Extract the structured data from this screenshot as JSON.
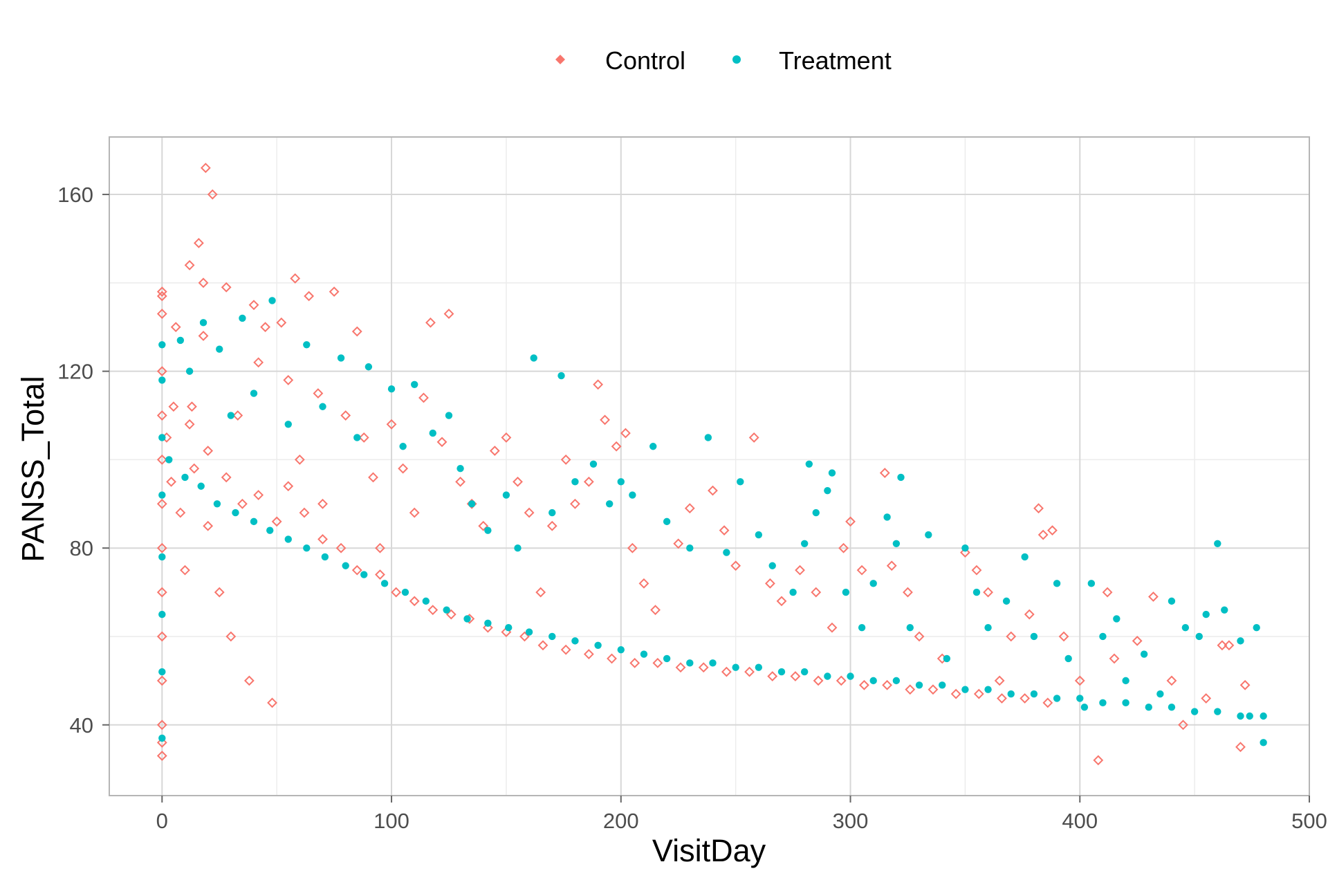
{
  "chart_data": {
    "type": "scatter",
    "title": "",
    "xlabel": "VisitDay",
    "ylabel": "PANSS_Total",
    "xlim": [
      -23,
      500
    ],
    "ylim": [
      24,
      173
    ],
    "xticks": [
      0,
      100,
      200,
      300,
      400,
      500
    ],
    "yticks": [
      40,
      80,
      120,
      160
    ],
    "xtick_labels": [
      "0",
      "100",
      "200",
      "300",
      "400",
      "500"
    ],
    "ytick_labels": [
      "40",
      "80",
      "120",
      "160"
    ],
    "grid": true,
    "legend_position": "top-center",
    "series": [
      {
        "name": "Control",
        "color": "#F8766D",
        "marker": "open-diamond",
        "points": [
          [
            0,
            138
          ],
          [
            0,
            137
          ],
          [
            0,
            133
          ],
          [
            0,
            120
          ],
          [
            0,
            110
          ],
          [
            0,
            100
          ],
          [
            0,
            90
          ],
          [
            0,
            80
          ],
          [
            0,
            70
          ],
          [
            0,
            60
          ],
          [
            0,
            50
          ],
          [
            0,
            40
          ],
          [
            0,
            36
          ],
          [
            0,
            33
          ],
          [
            2,
            105
          ],
          [
            4,
            95
          ],
          [
            6,
            130
          ],
          [
            8,
            88
          ],
          [
            10,
            75
          ],
          [
            12,
            144
          ],
          [
            13,
            112
          ],
          [
            14,
            98
          ],
          [
            16,
            149
          ],
          [
            18,
            140
          ],
          [
            18,
            128
          ],
          [
            19,
            166
          ],
          [
            22,
            160
          ],
          [
            20,
            85
          ],
          [
            25,
            70
          ],
          [
            28,
            139
          ],
          [
            30,
            60
          ],
          [
            33,
            110
          ],
          [
            38,
            50
          ],
          [
            40,
            135
          ],
          [
            42,
            122
          ],
          [
            45,
            130
          ],
          [
            48,
            45
          ],
          [
            52,
            131
          ],
          [
            55,
            118
          ],
          [
            58,
            141
          ],
          [
            60,
            100
          ],
          [
            64,
            137
          ],
          [
            68,
            115
          ],
          [
            70,
            90
          ],
          [
            75,
            138
          ],
          [
            80,
            110
          ],
          [
            85,
            129
          ],
          [
            88,
            105
          ],
          [
            92,
            96
          ],
          [
            95,
            80
          ],
          [
            100,
            108
          ],
          [
            105,
            98
          ],
          [
            110,
            88
          ],
          [
            114,
            114
          ],
          [
            117,
            131
          ],
          [
            122,
            104
          ],
          [
            125,
            133
          ],
          [
            130,
            95
          ],
          [
            135,
            90
          ],
          [
            140,
            85
          ],
          [
            145,
            102
          ],
          [
            150,
            105
          ],
          [
            155,
            95
          ],
          [
            160,
            88
          ],
          [
            165,
            70
          ],
          [
            170,
            85
          ],
          [
            176,
            100
          ],
          [
            180,
            90
          ],
          [
            186,
            95
          ],
          [
            190,
            117
          ],
          [
            193,
            109
          ],
          [
            198,
            103
          ],
          [
            202,
            106
          ],
          [
            205,
            80
          ],
          [
            210,
            72
          ],
          [
            215,
            66
          ],
          [
            225,
            81
          ],
          [
            230,
            89
          ],
          [
            240,
            93
          ],
          [
            245,
            84
          ],
          [
            250,
            76
          ],
          [
            258,
            105
          ],
          [
            265,
            72
          ],
          [
            270,
            68
          ],
          [
            278,
            75
          ],
          [
            285,
            70
          ],
          [
            292,
            62
          ],
          [
            297,
            80
          ],
          [
            300,
            86
          ],
          [
            305,
            75
          ],
          [
            315,
            97
          ],
          [
            318,
            76
          ],
          [
            325,
            70
          ],
          [
            330,
            60
          ],
          [
            340,
            55
          ],
          [
            350,
            79
          ],
          [
            355,
            75
          ],
          [
            360,
            70
          ],
          [
            365,
            50
          ],
          [
            370,
            60
          ],
          [
            378,
            65
          ],
          [
            382,
            89
          ],
          [
            384,
            83
          ],
          [
            388,
            84
          ],
          [
            393,
            60
          ],
          [
            400,
            50
          ],
          [
            408,
            32
          ],
          [
            412,
            70
          ],
          [
            415,
            55
          ],
          [
            425,
            59
          ],
          [
            432,
            69
          ],
          [
            440,
            50
          ],
          [
            445,
            40
          ],
          [
            455,
            46
          ],
          [
            462,
            58
          ],
          [
            465,
            58
          ],
          [
            470,
            35
          ],
          [
            472,
            49
          ],
          [
            5,
            112
          ],
          [
            12,
            108
          ],
          [
            20,
            102
          ],
          [
            28,
            96
          ],
          [
            35,
            90
          ],
          [
            42,
            92
          ],
          [
            50,
            86
          ],
          [
            55,
            94
          ],
          [
            62,
            88
          ],
          [
            70,
            82
          ],
          [
            78,
            80
          ],
          [
            85,
            75
          ],
          [
            95,
            74
          ],
          [
            102,
            70
          ],
          [
            110,
            68
          ],
          [
            118,
            66
          ],
          [
            126,
            65
          ],
          [
            134,
            64
          ],
          [
            142,
            62
          ],
          [
            150,
            61
          ],
          [
            158,
            60
          ],
          [
            166,
            58
          ],
          [
            176,
            57
          ],
          [
            186,
            56
          ],
          [
            196,
            55
          ],
          [
            206,
            54
          ],
          [
            216,
            54
          ],
          [
            226,
            53
          ],
          [
            236,
            53
          ],
          [
            246,
            52
          ],
          [
            256,
            52
          ],
          [
            266,
            51
          ],
          [
            276,
            51
          ],
          [
            286,
            50
          ],
          [
            296,
            50
          ],
          [
            306,
            49
          ],
          [
            316,
            49
          ],
          [
            326,
            48
          ],
          [
            336,
            48
          ],
          [
            346,
            47
          ],
          [
            356,
            47
          ],
          [
            366,
            46
          ],
          [
            376,
            46
          ],
          [
            386,
            45
          ]
        ]
      },
      {
        "name": "Treatment",
        "color": "#00BFC4",
        "marker": "filled-circle",
        "points": [
          [
            0,
            126
          ],
          [
            0,
            118
          ],
          [
            0,
            105
          ],
          [
            0,
            92
          ],
          [
            0,
            78
          ],
          [
            0,
            65
          ],
          [
            0,
            52
          ],
          [
            0,
            37
          ],
          [
            8,
            127
          ],
          [
            12,
            120
          ],
          [
            18,
            131
          ],
          [
            25,
            125
          ],
          [
            30,
            110
          ],
          [
            35,
            132
          ],
          [
            40,
            115
          ],
          [
            48,
            136
          ],
          [
            55,
            108
          ],
          [
            63,
            126
          ],
          [
            70,
            112
          ],
          [
            78,
            123
          ],
          [
            85,
            105
          ],
          [
            90,
            121
          ],
          [
            100,
            116
          ],
          [
            105,
            103
          ],
          [
            110,
            117
          ],
          [
            118,
            106
          ],
          [
            125,
            110
          ],
          [
            130,
            98
          ],
          [
            135,
            90
          ],
          [
            142,
            84
          ],
          [
            150,
            92
          ],
          [
            155,
            80
          ],
          [
            162,
            123
          ],
          [
            170,
            88
          ],
          [
            174,
            119
          ],
          [
            180,
            95
          ],
          [
            188,
            99
          ],
          [
            195,
            90
          ],
          [
            200,
            95
          ],
          [
            205,
            92
          ],
          [
            214,
            103
          ],
          [
            220,
            86
          ],
          [
            230,
            80
          ],
          [
            238,
            105
          ],
          [
            246,
            79
          ],
          [
            252,
            95
          ],
          [
            260,
            83
          ],
          [
            266,
            76
          ],
          [
            275,
            70
          ],
          [
            280,
            81
          ],
          [
            282,
            99
          ],
          [
            285,
            88
          ],
          [
            290,
            93
          ],
          [
            292,
            97
          ],
          [
            298,
            70
          ],
          [
            305,
            62
          ],
          [
            310,
            72
          ],
          [
            316,
            87
          ],
          [
            320,
            81
          ],
          [
            322,
            96
          ],
          [
            326,
            62
          ],
          [
            334,
            83
          ],
          [
            342,
            55
          ],
          [
            350,
            80
          ],
          [
            355,
            70
          ],
          [
            360,
            62
          ],
          [
            368,
            68
          ],
          [
            376,
            78
          ],
          [
            380,
            60
          ],
          [
            390,
            72
          ],
          [
            395,
            55
          ],
          [
            402,
            44
          ],
          [
            405,
            72
          ],
          [
            410,
            60
          ],
          [
            416,
            64
          ],
          [
            420,
            50
          ],
          [
            428,
            56
          ],
          [
            435,
            47
          ],
          [
            440,
            68
          ],
          [
            446,
            62
          ],
          [
            452,
            60
          ],
          [
            455,
            65
          ],
          [
            460,
            81
          ],
          [
            463,
            66
          ],
          [
            470,
            59
          ],
          [
            474,
            42
          ],
          [
            477,
            62
          ],
          [
            480,
            36
          ],
          [
            3,
            100
          ],
          [
            10,
            96
          ],
          [
            17,
            94
          ],
          [
            24,
            90
          ],
          [
            32,
            88
          ],
          [
            40,
            86
          ],
          [
            47,
            84
          ],
          [
            55,
            82
          ],
          [
            63,
            80
          ],
          [
            71,
            78
          ],
          [
            80,
            76
          ],
          [
            88,
            74
          ],
          [
            97,
            72
          ],
          [
            106,
            70
          ],
          [
            115,
            68
          ],
          [
            124,
            66
          ],
          [
            133,
            64
          ],
          [
            142,
            63
          ],
          [
            151,
            62
          ],
          [
            160,
            61
          ],
          [
            170,
            60
          ],
          [
            180,
            59
          ],
          [
            190,
            58
          ],
          [
            200,
            57
          ],
          [
            210,
            56
          ],
          [
            220,
            55
          ],
          [
            230,
            54
          ],
          [
            240,
            54
          ],
          [
            250,
            53
          ],
          [
            260,
            53
          ],
          [
            270,
            52
          ],
          [
            280,
            52
          ],
          [
            290,
            51
          ],
          [
            300,
            51
          ],
          [
            310,
            50
          ],
          [
            320,
            50
          ],
          [
            330,
            49
          ],
          [
            340,
            49
          ],
          [
            350,
            48
          ],
          [
            360,
            48
          ],
          [
            370,
            47
          ],
          [
            380,
            47
          ],
          [
            390,
            46
          ],
          [
            400,
            46
          ],
          [
            410,
            45
          ],
          [
            420,
            45
          ],
          [
            430,
            44
          ],
          [
            440,
            44
          ],
          [
            450,
            43
          ],
          [
            460,
            43
          ],
          [
            470,
            42
          ],
          [
            480,
            42
          ]
        ]
      }
    ]
  }
}
